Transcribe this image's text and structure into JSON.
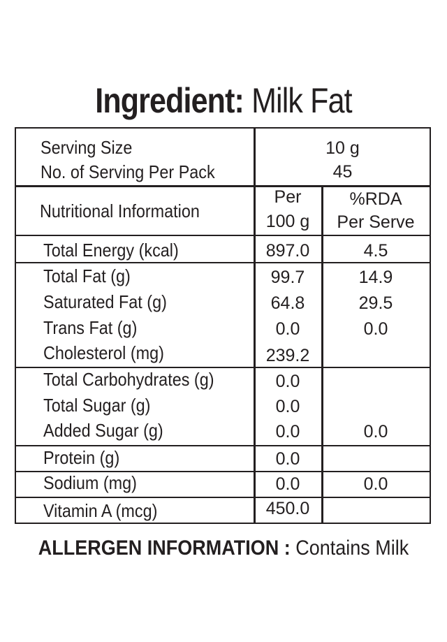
{
  "title": {
    "prefix": "Ingredient:",
    "name": "Milk Fat"
  },
  "serving": {
    "size_label": "Serving Size",
    "size_value": "10 g",
    "per_pack_label": "No. of Serving Per Pack",
    "per_pack_value": "45"
  },
  "header": {
    "label": "Nutritional Information",
    "col1_line1": "Per",
    "col1_line2": "100 g",
    "col2_line1": "%RDA",
    "col2_line2": "Per Serve"
  },
  "rows": [
    {
      "label": "Total Energy (kcal)",
      "per100": "897.0",
      "rda": "4.5"
    },
    {
      "label": "Total Fat (g)",
      "per100": "99.7",
      "rda": "14.9"
    },
    {
      "label": "Saturated Fat (g)",
      "per100": "64.8",
      "rda": "29.5"
    },
    {
      "label": "Trans Fat (g)",
      "per100": "0.0",
      "rda": "0.0"
    },
    {
      "label": "Cholesterol (mg)",
      "per100": "239.2",
      "rda": ""
    },
    {
      "label": "Total Carbohydrates (g)",
      "per100": "0.0",
      "rda": ""
    },
    {
      "label": "Total Sugar (g)",
      "per100": "0.0",
      "rda": ""
    },
    {
      "label": "Added Sugar (g)",
      "per100": "0.0",
      "rda": "0.0"
    },
    {
      "label": "Protein (g)",
      "per100": "0.0",
      "rda": ""
    },
    {
      "label": "Sodium (mg)",
      "per100": "0.0",
      "rda": "0.0"
    },
    {
      "label": "Vitamin A (mcg)",
      "per100": "450.0",
      "rda": ""
    }
  ],
  "allergen": {
    "label": "ALLERGEN INFORMATION :",
    "value": "Contains Milk"
  }
}
